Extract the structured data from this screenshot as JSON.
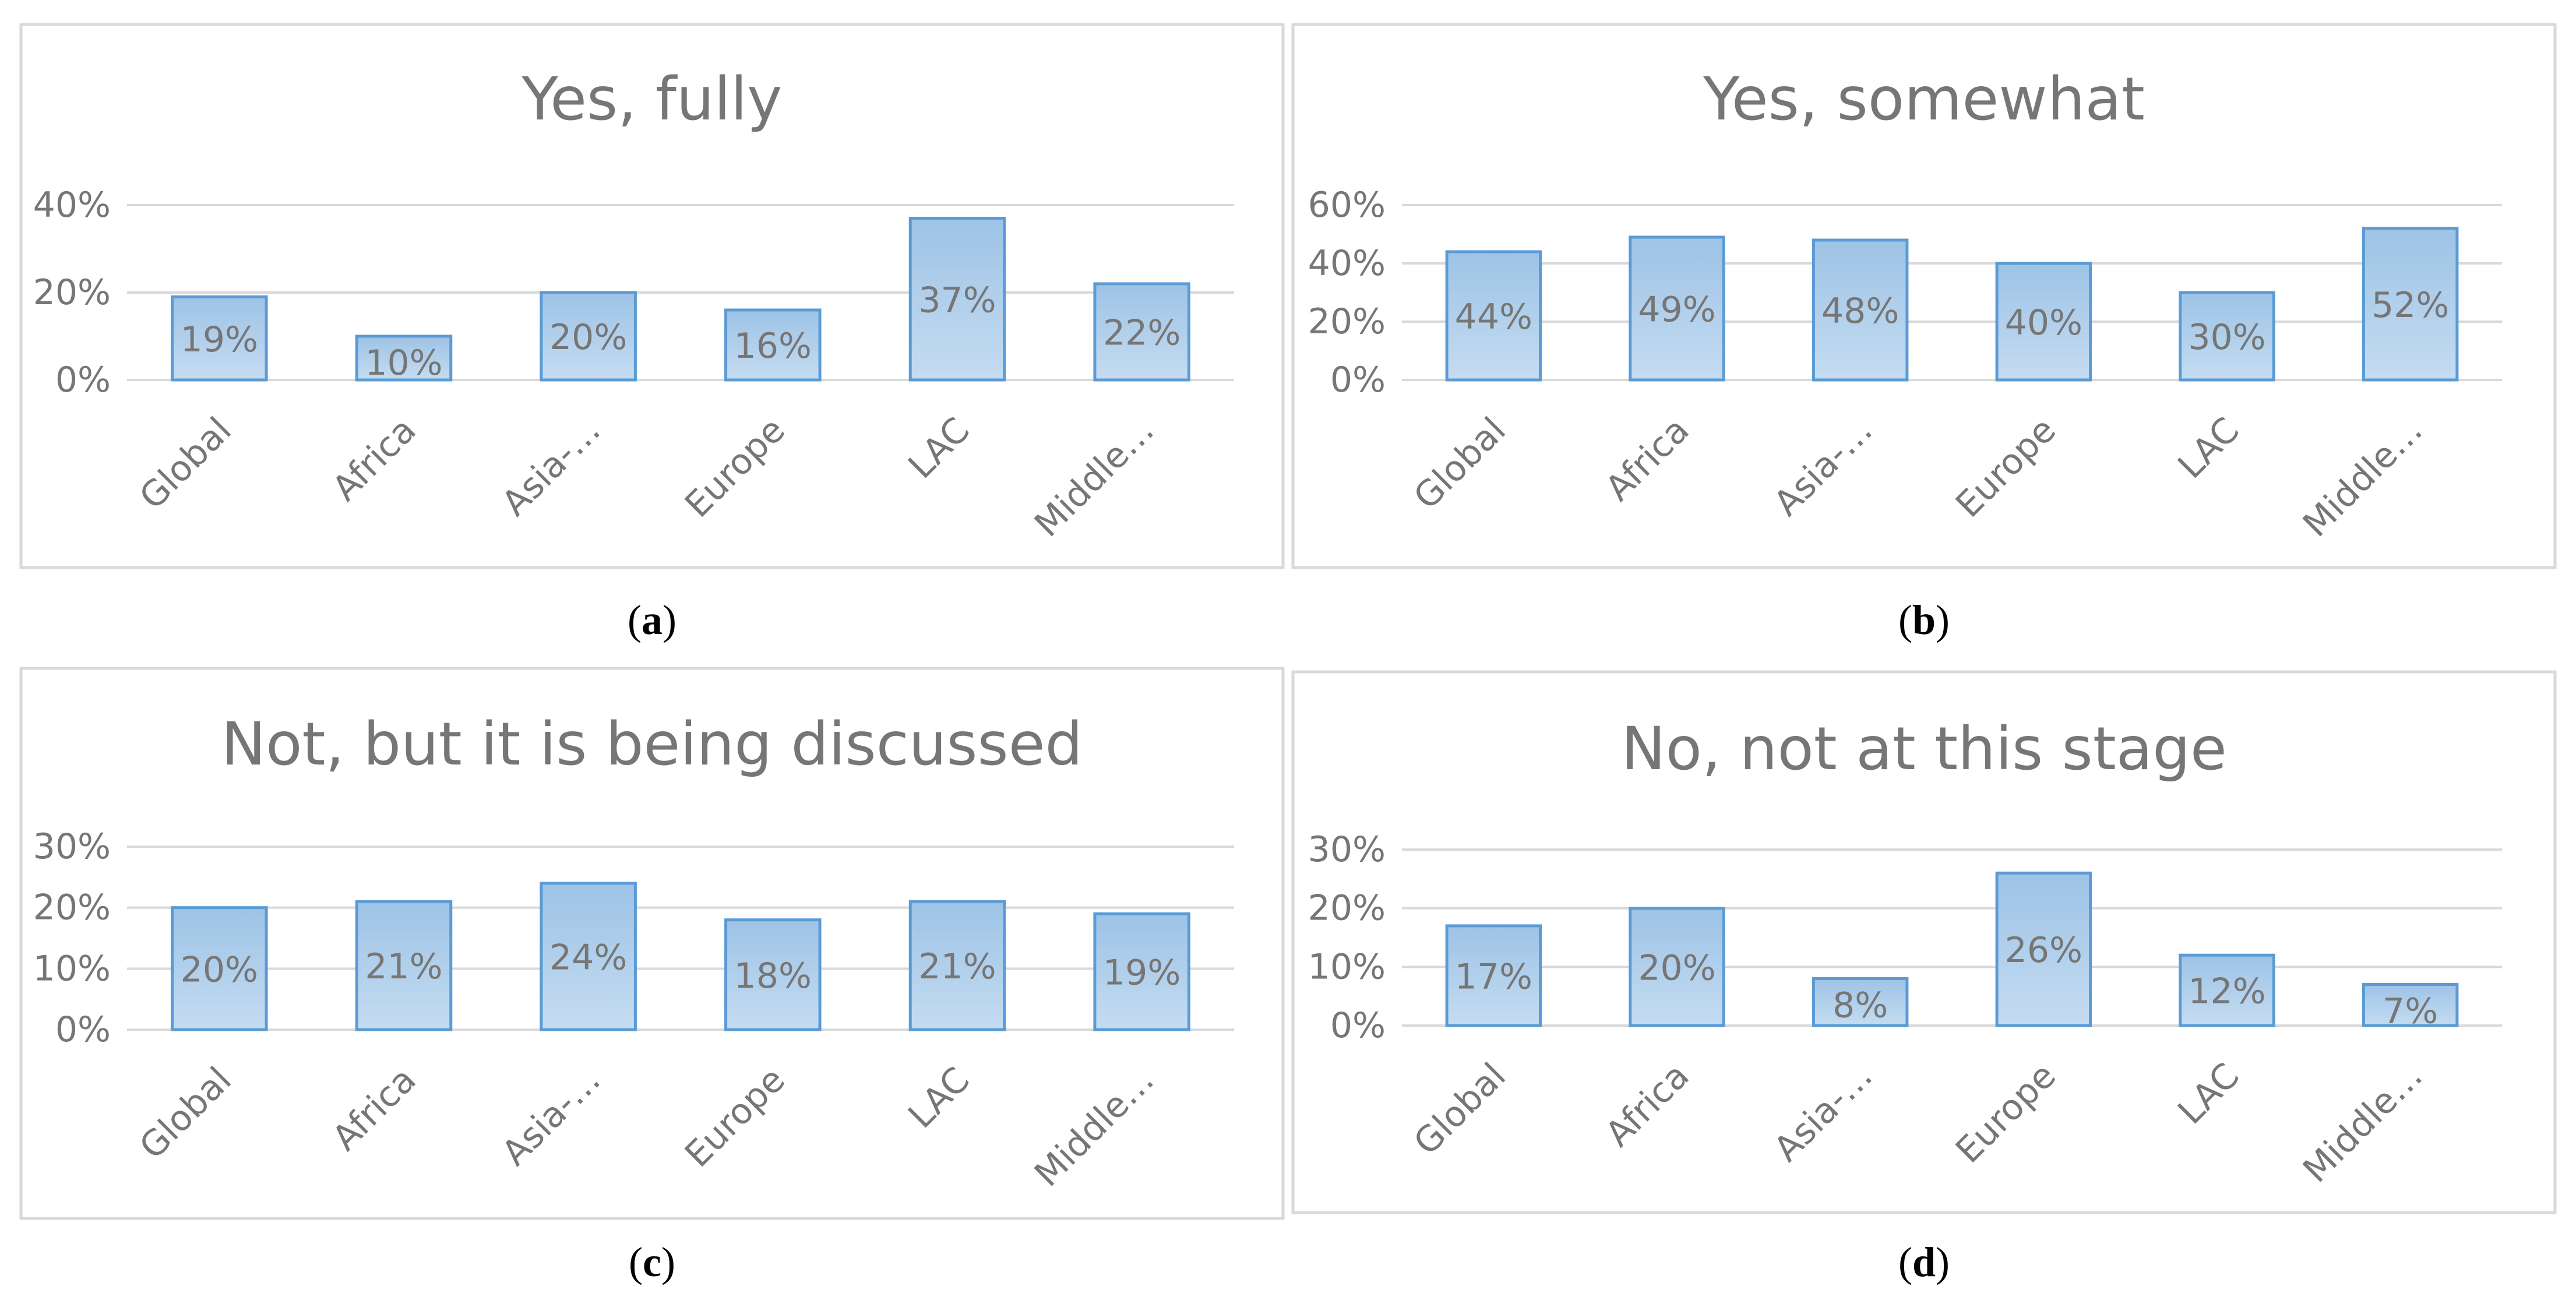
{
  "chart_data": [
    {
      "type": "bar",
      "title": "Yes, fully",
      "caption_letter": "a",
      "categories": [
        "Global",
        "Africa",
        "Asia-…",
        "Europe",
        "LAC",
        "Middle…"
      ],
      "values": [
        19,
        10,
        20,
        16,
        37,
        22
      ],
      "data_labels": [
        "19%",
        "10%",
        "20%",
        "16%",
        "37%",
        "22%"
      ],
      "ylim": [
        0,
        40
      ],
      "yticks": [
        0,
        20,
        40
      ],
      "ytick_labels": [
        "0%",
        "20%",
        "40%"
      ],
      "grid": true,
      "xlabel": "",
      "ylabel": ""
    },
    {
      "type": "bar",
      "title": "Yes, somewhat",
      "caption_letter": "b",
      "categories": [
        "Global",
        "Africa",
        "Asia-…",
        "Europe",
        "LAC",
        "Middle…"
      ],
      "values": [
        44,
        49,
        48,
        40,
        30,
        52
      ],
      "data_labels": [
        "44%",
        "49%",
        "48%",
        "40%",
        "30%",
        "52%"
      ],
      "ylim": [
        0,
        60
      ],
      "yticks": [
        0,
        20,
        40,
        60
      ],
      "ytick_labels": [
        "0%",
        "20%",
        "40%",
        "60%"
      ],
      "grid": true,
      "xlabel": "",
      "ylabel": ""
    },
    {
      "type": "bar",
      "title": "Not, but it is being discussed",
      "caption_letter": "c",
      "categories": [
        "Global",
        "Africa",
        "Asia-…",
        "Europe",
        "LAC",
        "Middle…"
      ],
      "values": [
        20,
        21,
        24,
        18,
        21,
        19
      ],
      "data_labels": [
        "20%",
        "21%",
        "24%",
        "18%",
        "21%",
        "19%"
      ],
      "ylim": [
        0,
        30
      ],
      "yticks": [
        0,
        10,
        20,
        30
      ],
      "ytick_labels": [
        "0%",
        "10%",
        "20%",
        "30%"
      ],
      "grid": true,
      "xlabel": "",
      "ylabel": ""
    },
    {
      "type": "bar",
      "title": "No, not at this stage",
      "caption_letter": "d",
      "categories": [
        "Global",
        "Africa",
        "Asia-…",
        "Europe",
        "LAC",
        "Middle…"
      ],
      "values": [
        17,
        20,
        8,
        26,
        12,
        7
      ],
      "data_labels": [
        "17%",
        "20%",
        "8%",
        "26%",
        "12%",
        "7%"
      ],
      "ylim": [
        0,
        30
      ],
      "yticks": [
        0,
        10,
        20,
        30
      ],
      "ytick_labels": [
        "0%",
        "10%",
        "20%",
        "30%"
      ],
      "grid": true,
      "xlabel": "",
      "ylabel": ""
    }
  ],
  "colors": {
    "bar_fill_top": "#9dc3e6",
    "bar_fill_bottom": "#bdd7ee",
    "bar_stroke": "#5b9bd5",
    "text": "#767676",
    "grid": "#d9d9d9"
  },
  "captions": [
    "(a)",
    "(b)",
    "(c)",
    "(d)"
  ]
}
